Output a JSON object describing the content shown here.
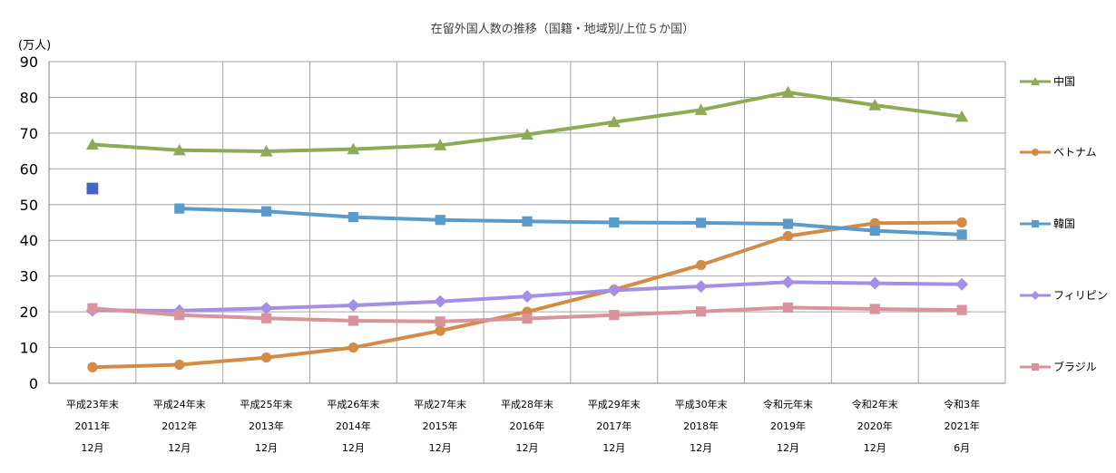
{
  "chart_data": {
    "type": "line",
    "title": "在留外国人数の推移（国籍・地域別/上位５か国）",
    "ylabel": "(万人)",
    "ylim": [
      0,
      90
    ],
    "yticks": [
      0,
      10,
      20,
      30,
      40,
      50,
      60,
      70,
      80,
      90
    ],
    "grid": true,
    "legend_position": "right",
    "categories": [
      [
        "平成23年末",
        "2011年",
        "12月"
      ],
      [
        "平成24年末",
        "2012年",
        "12月"
      ],
      [
        "平成25年末",
        "2013年",
        "12月"
      ],
      [
        "平成26年末",
        "2014年",
        "12月"
      ],
      [
        "平成27年末",
        "2015年",
        "12月"
      ],
      [
        "平成28年末",
        "2016年",
        "12月"
      ],
      [
        "平成29年末",
        "2017年",
        "12月"
      ],
      [
        "平成30年末",
        "2018年",
        "12月"
      ],
      [
        "令和元年末",
        "2019年",
        "12月"
      ],
      [
        "令和2年末",
        "2020年",
        "12月"
      ],
      [
        "令和3年",
        "2021年",
        "6月"
      ]
    ],
    "series": [
      {
        "name": "中国",
        "color": "#8faa54",
        "marker": "triangle",
        "values": [
          66.8,
          65.2,
          64.9,
          65.5,
          66.6,
          69.6,
          73.1,
          76.5,
          81.4,
          77.8,
          74.6
        ]
      },
      {
        "name": "ベトナム",
        "color": "#d38c48",
        "marker": "circle",
        "values": [
          4.5,
          5.2,
          7.2,
          10.0,
          14.7,
          20.0,
          26.2,
          33.1,
          41.2,
          44.8,
          45.0
        ]
      },
      {
        "name": "韓国",
        "color": "#5b9bc9",
        "marker": "square",
        "values": [
          null,
          48.9,
          48.1,
          46.5,
          45.7,
          45.3,
          45.0,
          44.9,
          44.6,
          42.7,
          41.6
        ]
      },
      {
        "name": "フィリピン",
        "color": "#a58fe6",
        "marker": "diamond",
        "values": [
          20.4,
          20.3,
          21.0,
          21.8,
          22.9,
          24.3,
          26.0,
          27.1,
          28.3,
          28.0,
          27.7
        ]
      },
      {
        "name": "ブラジル",
        "color": "#d9939c",
        "marker": "square",
        "values": [
          21.0,
          19.1,
          18.2,
          17.5,
          17.3,
          18.1,
          19.1,
          20.1,
          21.2,
          20.8,
          20.5
        ]
      }
    ],
    "extra_points": [
      {
        "category_index": 0,
        "value": 54.5,
        "color": "#4466c2",
        "marker": "square"
      }
    ]
  }
}
